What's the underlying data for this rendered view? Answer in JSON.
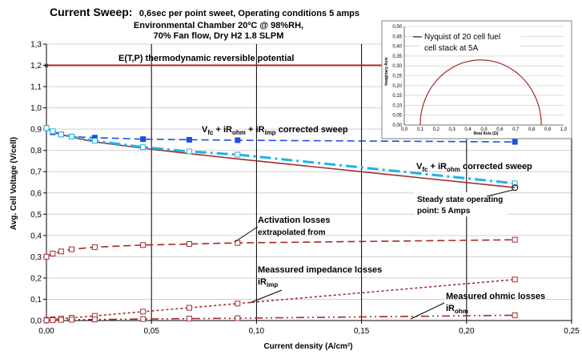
{
  "chart_data": {
    "type": "line",
    "title_main": "Current Sweep:",
    "title_rest": "0,6sec per point sweet, Operating conditions 5 amps",
    "subtitle_line1": "Environmental Chamber 20ºC @ 98%RH,",
    "subtitle_line2": "70% Fan flow, Dry H2 1.8 SLPM",
    "xlabel": "Current density (A/cm²)",
    "ylabel": "Avg. Cell Voltage (V/cell)",
    "xlim": [
      0,
      0.25
    ],
    "ylim": [
      0,
      1.3
    ],
    "x_ticks": [
      "0,00",
      "0,05",
      "0,10",
      "0,15",
      "0,20",
      "0,25"
    ],
    "y_ticks": [
      "0,0",
      "0,1",
      "0,2",
      "0,3",
      "0,4",
      "0,5",
      "0,6",
      "0,7",
      "0,8",
      "0,9",
      "1,0",
      "1,1",
      "1,2",
      "1,3"
    ],
    "reversible_potential": {
      "value": 1.2,
      "label": "E(T,P) thermodynamic reversible potential",
      "color": "#a52a2a"
    },
    "series": [
      {
        "color": "#a52a2a",
        "style": "solid",
        "x": [
          0.0,
          0.003,
          0.007,
          0.012,
          0.023,
          0.046,
          0.068,
          0.091,
          0.223
        ],
        "y": [
          0.905,
          0.89,
          0.875,
          0.862,
          0.84,
          0.81,
          0.785,
          0.76,
          0.625
        ]
      },
      {
        "color": "#1e4fe0",
        "style": "dashed",
        "marker": "filled-square",
        "x": [
          0.0,
          0.003,
          0.007,
          0.012,
          0.023,
          0.046,
          0.068,
          0.091,
          0.223
        ],
        "y": [
          0.905,
          0.885,
          0.875,
          0.865,
          0.86,
          0.853,
          0.85,
          0.848,
          0.84
        ]
      },
      {
        "color": "#1fb3e6",
        "style": "dashdot",
        "marker": "open-square",
        "x": [
          0.0,
          0.003,
          0.007,
          0.012,
          0.023,
          0.046,
          0.068,
          0.091,
          0.223
        ],
        "y": [
          0.905,
          0.89,
          0.875,
          0.865,
          0.845,
          0.815,
          0.795,
          0.78,
          0.645
        ]
      },
      {
        "color": "#a52a2a",
        "style": "dashed",
        "marker": "open-square",
        "x": [
          0.0,
          0.003,
          0.007,
          0.012,
          0.023,
          0.046,
          0.068,
          0.091,
          0.223
        ],
        "y": [
          0.3,
          0.315,
          0.325,
          0.335,
          0.345,
          0.355,
          0.36,
          0.365,
          0.38
        ]
      },
      {
        "color": "#a52a2a",
        "style": "dotted",
        "marker": "open-square",
        "x": [
          0.0,
          0.003,
          0.007,
          0.012,
          0.023,
          0.046,
          0.068,
          0.091,
          0.223
        ],
        "y": [
          0.003,
          0.006,
          0.009,
          0.013,
          0.022,
          0.042,
          0.06,
          0.08,
          0.193
        ]
      },
      {
        "color": "#a52a2a",
        "style": "dashdotdot",
        "marker": "open-square",
        "x": [
          0.0,
          0.003,
          0.007,
          0.012,
          0.023,
          0.046,
          0.068,
          0.091,
          0.223
        ],
        "y": [
          0.001,
          0.002,
          0.003,
          0.004,
          0.005,
          0.007,
          0.009,
          0.011,
          0.025
        ]
      }
    ],
    "annotations": {
      "vfc_imp_base": "V",
      "vfc_imp_sub1": "fc",
      "vfc_imp_mid1": " + iR",
      "vfc_imp_sub2": "ohm",
      "vfc_imp_mid2": " + iR",
      "vfc_imp_sub3": "imp",
      "vfc_imp_tail": " corrected  sweep",
      "vfc_ohm_base": "V",
      "vfc_ohm_sub1": "fc",
      "vfc_ohm_mid1": " + iR",
      "vfc_ohm_sub2": "ohm",
      "vfc_ohm_tail": " corrected sweep",
      "steady_line1": "Steady state operating",
      "steady_line2": "point: 5 Amps",
      "activation_line1": "Activation losses",
      "activation_line2": "extrapolated from",
      "impedance_line1": "Meassured impedance losses",
      "impedance_base": "iR",
      "impedance_sub": "imp",
      "ohmic_line1": "Measured ohmic losses",
      "ohmic_base": "iR",
      "ohmic_sub": "ohm"
    },
    "inset": {
      "type": "line",
      "legend_line1": "Nyquist of 20 cell fuel",
      "legend_line2": "cell stack at 5A",
      "xlabel": "Real Axis (Ω)",
      "ylabel": "Imaginary Axis",
      "xlim": [
        0,
        1.0
      ],
      "ylim": [
        0,
        0.5
      ],
      "x_ticks": [
        "0,0",
        "0,1",
        "0,2",
        "0,3",
        "0,4",
        "0,5",
        "0,6",
        "0,7",
        "0,8",
        "0,9",
        "1,0"
      ],
      "y_ticks": [
        "0,00",
        "0,05",
        "0,10",
        "0,15",
        "0,20",
        "0,25",
        "0,30",
        "0,35",
        "0,40",
        "0,45",
        "0,50"
      ],
      "arc": {
        "x_start": 0.1,
        "x_end": 0.86,
        "peak": 0.33,
        "color": "#a52a2a"
      }
    }
  }
}
